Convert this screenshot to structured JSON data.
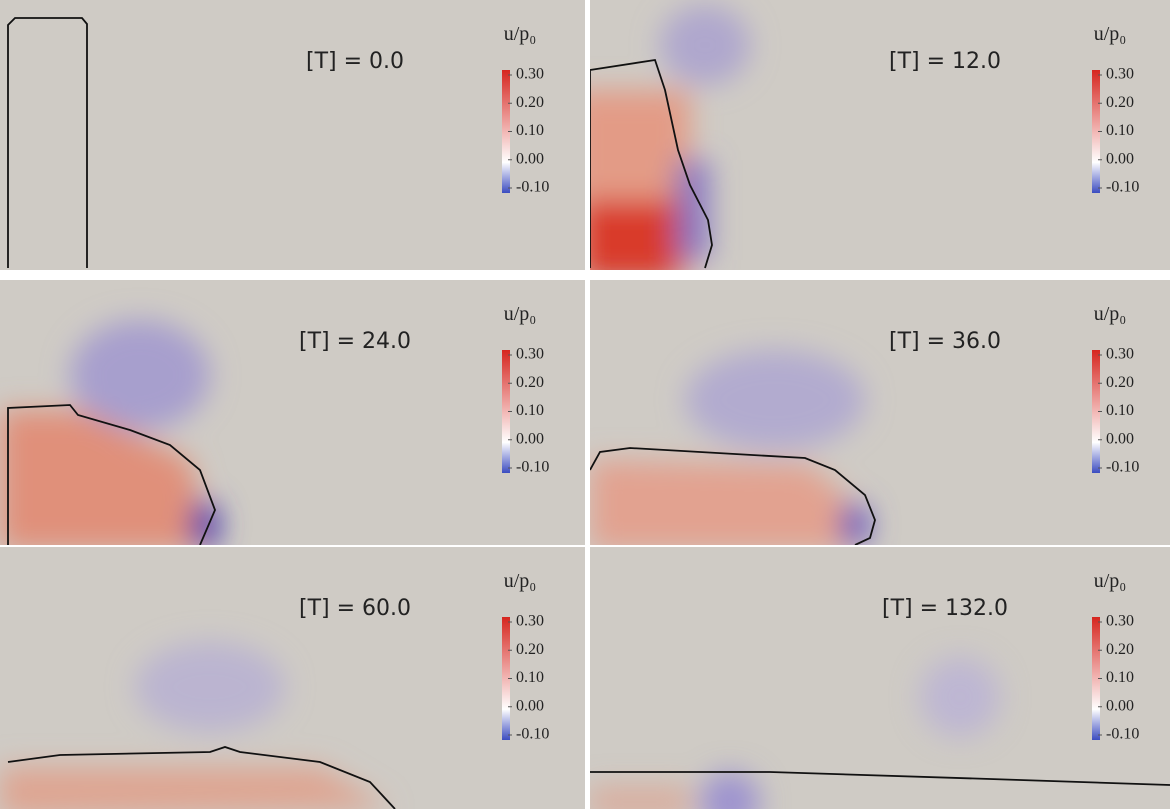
{
  "panels": [
    {
      "title": "[T] = 0.0",
      "colorbar": {
        "label": "u/p₀",
        "lim": [
          -0.1,
          0.3
        ],
        "ticks": [
          {
            "value": 0.3,
            "label": "0.30"
          },
          {
            "value": 0.2,
            "label": "0.20"
          },
          {
            "value": 0.1,
            "label": "0.10"
          },
          {
            "value": 0,
            "label": "0.00"
          },
          {
            "value": -0.1,
            "label": "-0.10"
          }
        ]
      }
    },
    {
      "title": "[T] = 12.0",
      "colorbar": {
        "label": "u/p₀",
        "lim": [
          -0.1,
          0.3
        ],
        "ticks": [
          {
            "value": 0.3,
            "label": "0.30"
          },
          {
            "value": 0.2,
            "label": "0.20"
          },
          {
            "value": 0.1,
            "label": "0.10"
          },
          {
            "value": 0,
            "label": "0.00"
          },
          {
            "value": -0.1,
            "label": "-0.10"
          }
        ]
      }
    },
    {
      "title": "[T] = 24.0",
      "colorbar": {
        "label": "u/p₀",
        "lim": [
          -0.1,
          0.3
        ],
        "ticks": [
          {
            "value": 0.3,
            "label": "0.30"
          },
          {
            "value": 0.2,
            "label": "0.20"
          },
          {
            "value": 0.1,
            "label": "0.10"
          },
          {
            "value": 0,
            "label": "0.00"
          },
          {
            "value": -0.1,
            "label": "-0.10"
          }
        ]
      }
    },
    {
      "title": "[T] = 36.0",
      "colorbar": {
        "label": "u/p₀",
        "lim": [
          -0.1,
          0.3
        ],
        "ticks": [
          {
            "value": 0.3,
            "label": "0.30"
          },
          {
            "value": 0.2,
            "label": "0.20"
          },
          {
            "value": 0.1,
            "label": "0.10"
          },
          {
            "value": 0,
            "label": "0.00"
          },
          {
            "value": -0.1,
            "label": "-0.10"
          }
        ]
      }
    },
    {
      "title": "[T] = 60.0",
      "colorbar": {
        "label": "u/p₀",
        "lim": [
          -0.1,
          0.3
        ],
        "ticks": [
          {
            "value": 0.3,
            "label": "0.30"
          },
          {
            "value": 0.2,
            "label": "0.20"
          },
          {
            "value": 0.1,
            "label": "0.10"
          },
          {
            "value": 0,
            "label": "0.00"
          },
          {
            "value": -0.1,
            "label": "-0.10"
          }
        ]
      }
    },
    {
      "title": "[T] = 132.0",
      "colorbar": {
        "label": "u/p₀",
        "lim": [
          -0.1,
          0.3
        ],
        "ticks": [
          {
            "value": 0.3,
            "label": "0.30"
          },
          {
            "value": 0.2,
            "label": "0.20"
          },
          {
            "value": 0.1,
            "label": "0.10"
          },
          {
            "value": 0,
            "label": "0.00"
          },
          {
            "value": -0.1,
            "label": "-0.10"
          }
        ]
      }
    }
  ]
}
